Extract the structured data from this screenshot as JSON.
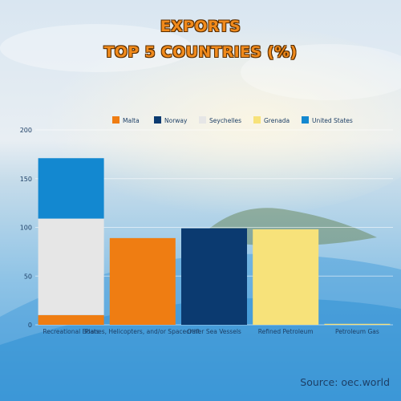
{
  "title_line1": "EXPORTS",
  "title_line2": "TOP 5 COUNTRIES (%)",
  "source": "Source: oec.world",
  "chart_data": {
    "type": "bar",
    "stacked": true,
    "categories": [
      "Recreational Boats",
      "Planes, Helicopters, and/or Spacecraft",
      "Other Sea Vessels",
      "Refined Petroleum",
      "Petroleum Gas"
    ],
    "series": [
      {
        "name": "Malta",
        "color": "#ef7d12",
        "values": [
          10,
          89,
          0,
          0,
          0
        ]
      },
      {
        "name": "Norway",
        "color": "#0b3a70",
        "values": [
          0,
          0,
          99,
          0,
          0
        ]
      },
      {
        "name": "Seychelles",
        "color": "#e6e6e6",
        "values": [
          99,
          0,
          0,
          0,
          0
        ]
      },
      {
        "name": "Grenada",
        "color": "#f7e27a",
        "values": [
          0,
          0,
          0,
          98,
          1
        ]
      },
      {
        "name": "United States",
        "color": "#1388d0",
        "values": [
          62,
          0,
          0,
          0,
          0
        ]
      }
    ],
    "ylim": [
      0,
      200
    ],
    "yticks": [
      0,
      50,
      100,
      150,
      200
    ],
    "grid": true,
    "legend": "top"
  }
}
